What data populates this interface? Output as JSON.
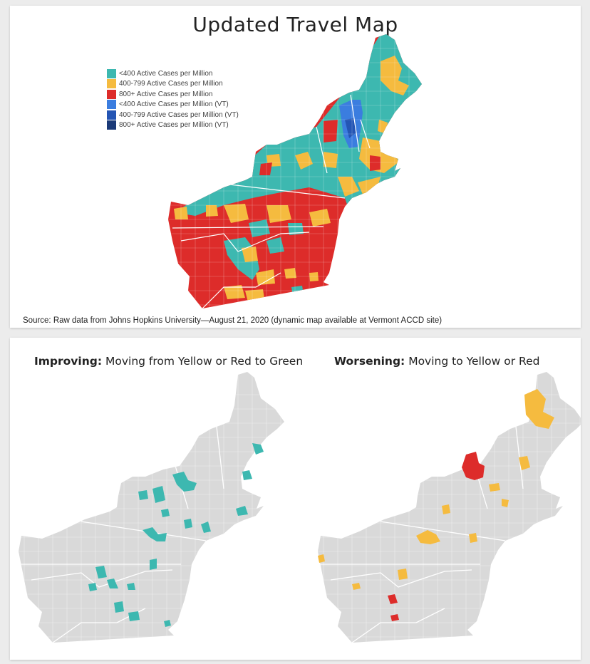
{
  "top_panel": {
    "title": "Updated Travel Map",
    "source": "Source: Raw data from Johns Hopkins University—August 21, 2020 (dynamic map available at Vermont ACCD site)",
    "legend": [
      {
        "label": "<400 Active Cases per Million",
        "color": "#3db8b0"
      },
      {
        "label": "400-799 Active Cases per Million",
        "color": "#f5bb3f"
      },
      {
        "label": "800+ Active Cases per Million",
        "color": "#dd2c2a"
      },
      {
        "label": "<400 Active Cases per Million (VT)",
        "color": "#3b7ddf"
      },
      {
        "label": "400-799 Active Cases per Million (VT)",
        "color": "#2455b4"
      },
      {
        "label": "800+ Active Cases per Million (VT)",
        "color": "#1b3a78"
      }
    ]
  },
  "bottom_panel": {
    "improving": {
      "heading_bold": "Improving:",
      "heading_rest": " Moving from Yellow or Red to Green"
    },
    "worsening": {
      "heading_bold": "Worsening:",
      "heading_rest": " Moving to Yellow or Red"
    }
  },
  "colors": {
    "green": "#3db8b0",
    "yellow": "#f5bb3f",
    "red": "#dd2c2a",
    "vt_blue": "#3b7ddf",
    "base_gray": "#d9d9d9"
  }
}
